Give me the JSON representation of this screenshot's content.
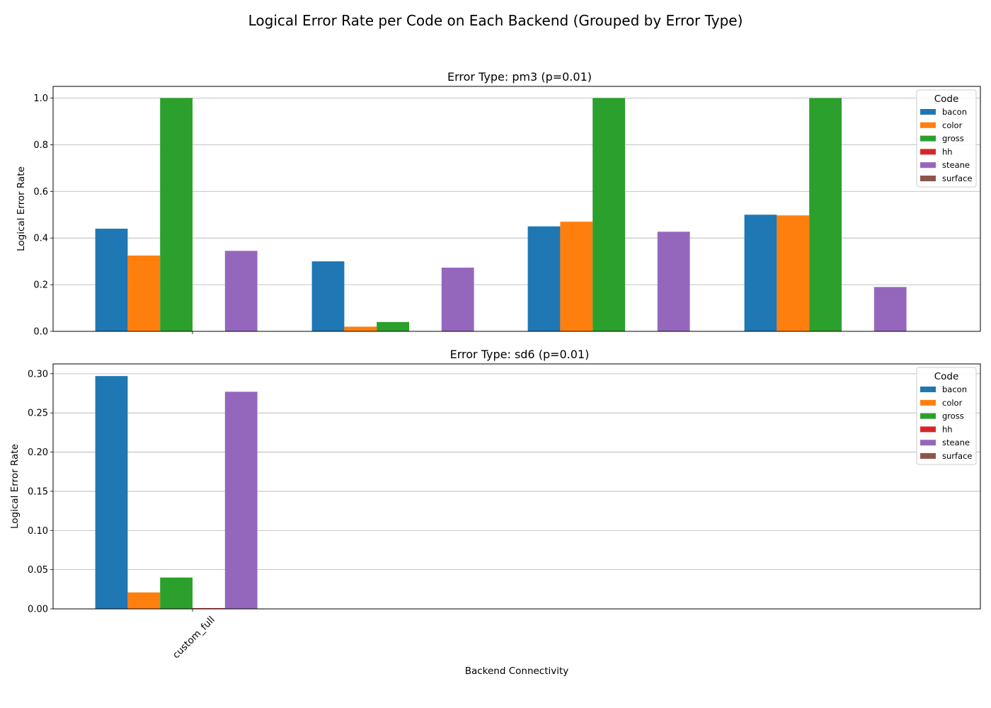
{
  "figure": {
    "title": "Logical Error Rate per Code on Each Backend (Grouped by Error Type)",
    "xlabel": "Backend Connectivity"
  },
  "colors": {
    "bacon": "#1f77b4",
    "color": "#ff7f0e",
    "gross": "#2ca02c",
    "hh": "#d62728",
    "steane": "#9467bd",
    "surface": "#8c564b"
  },
  "chart_data": [
    {
      "type": "bar",
      "title": "Error Type: pm3 (p=0.01)",
      "ylabel": "Logical Error Rate",
      "xlabel": "",
      "ylim": [
        0,
        1.05
      ],
      "yticks": [
        "0.0",
        "0.2",
        "0.4",
        "0.6",
        "0.8",
        "1.0"
      ],
      "grid": true,
      "legend": {
        "title": "Code",
        "placement": "top-right"
      },
      "categories": [
        "custom_full",
        "",
        "",
        ""
      ],
      "tick_labels_shown": [
        ""
      ],
      "series": [
        {
          "name": "bacon",
          "values": [
            0.44,
            0.3,
            0.45,
            0.5
          ]
        },
        {
          "name": "color",
          "values": [
            0.325,
            0.02,
            0.47,
            0.497
          ]
        },
        {
          "name": "gross",
          "values": [
            1.0,
            0.04,
            1.0,
            1.0
          ]
        },
        {
          "name": "hh",
          "values": [
            0.0,
            0.0,
            0.0,
            0.0
          ]
        },
        {
          "name": "steane",
          "values": [
            0.345,
            0.273,
            0.427,
            0.19
          ]
        },
        {
          "name": "surface",
          "values": [
            0.0,
            0.0,
            0.0,
            0.0
          ]
        }
      ]
    },
    {
      "type": "bar",
      "title": "Error Type: sd6 (p=0.01)",
      "ylabel": "Logical Error Rate",
      "xlabel": "Backend Connectivity",
      "ylim": [
        0,
        0.3125
      ],
      "yticks": [
        "0.00",
        "0.05",
        "0.10",
        "0.15",
        "0.20",
        "0.25",
        "0.30"
      ],
      "grid": true,
      "legend": {
        "title": "Code",
        "placement": "top-right"
      },
      "categories": [
        "custom_full",
        "",
        "",
        ""
      ],
      "tick_labels_shown": [
        "custom_full"
      ],
      "series": [
        {
          "name": "bacon",
          "values": [
            0.297,
            0,
            0,
            0
          ]
        },
        {
          "name": "color",
          "values": [
            0.021,
            0,
            0,
            0
          ]
        },
        {
          "name": "gross",
          "values": [
            0.04,
            0,
            0,
            0
          ]
        },
        {
          "name": "hh",
          "values": [
            0.001,
            0,
            0,
            0
          ]
        },
        {
          "name": "steane",
          "values": [
            0.277,
            0,
            0,
            0
          ]
        },
        {
          "name": "surface",
          "values": [
            0.0,
            0,
            0,
            0
          ]
        }
      ]
    }
  ]
}
